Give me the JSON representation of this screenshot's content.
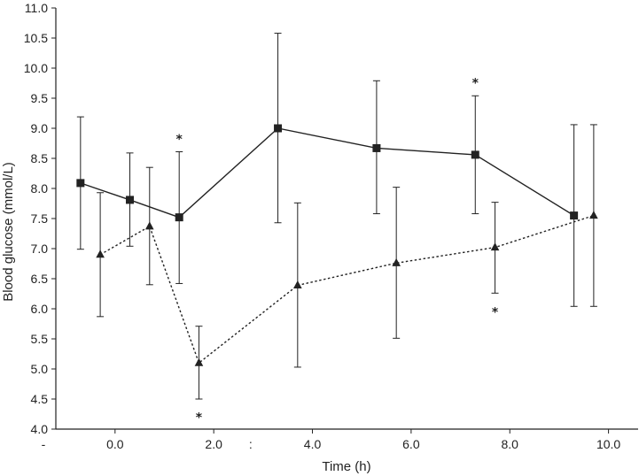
{
  "chart_data": {
    "type": "line",
    "xlabel": "Time (h)",
    "ylabel": "Blood glucose (mmol/L)",
    "xlim": [
      -1.2,
      10.6
    ],
    "ylim": [
      4.0,
      11.0
    ],
    "x_ticks": [
      0.0,
      2.0,
      4.0,
      6.0,
      8.0,
      10.0
    ],
    "x_tick_labels": [
      "0.0",
      "2.0",
      "4.0",
      "6.0",
      "8.0",
      "10.0"
    ],
    "x_extra_labels": [
      {
        "x": -1.2,
        "text": "-"
      },
      {
        "x": 3.0,
        "text": ":"
      }
    ],
    "y_ticks": [
      4.0,
      4.5,
      5.0,
      5.5,
      6.0,
      6.5,
      7.0,
      7.5,
      8.0,
      8.5,
      9.0,
      9.5,
      10.0,
      10.5,
      11.0
    ],
    "y_tick_labels": [
      "4.0",
      "4.5",
      "5.0",
      "5.5",
      "6.0",
      "6.5",
      "7.0",
      "7.5",
      "8.0",
      "8.5",
      "9.0",
      "9.5",
      "10.0",
      "10.5",
      "11.0"
    ],
    "grid": false,
    "series": [
      {
        "marker": "square",
        "line_style": "solid",
        "points": [
          {
            "x": -0.7,
            "y": 8.09,
            "lo": 6.99,
            "hi": 9.19
          },
          {
            "x": 0.3,
            "y": 7.81,
            "lo": 7.04,
            "hi": 8.59
          },
          {
            "x": 1.3,
            "y": 7.52,
            "lo": 6.42,
            "hi": 8.61
          },
          {
            "x": 3.3,
            "y": 9.0,
            "lo": 7.43,
            "hi": 10.58
          },
          {
            "x": 5.3,
            "y": 8.67,
            "lo": 7.58,
            "hi": 9.79
          },
          {
            "x": 7.3,
            "y": 8.56,
            "lo": 7.58,
            "hi": 9.54
          },
          {
            "x": 9.3,
            "y": 7.55,
            "lo": 6.04,
            "hi": 9.06
          }
        ]
      },
      {
        "marker": "triangle",
        "line_style": "dotted",
        "points": [
          {
            "x": -0.3,
            "y": 6.9,
            "lo": 5.87,
            "hi": 7.93
          },
          {
            "x": 0.7,
            "y": 7.37,
            "lo": 6.4,
            "hi": 8.35
          },
          {
            "x": 1.7,
            "y": 5.1,
            "lo": 4.5,
            "hi": 5.71
          },
          {
            "x": 3.7,
            "y": 6.39,
            "lo": 5.03,
            "hi": 7.76
          },
          {
            "x": 5.7,
            "y": 6.76,
            "lo": 5.51,
            "hi": 8.02
          },
          {
            "x": 7.7,
            "y": 7.02,
            "lo": 6.26,
            "hi": 7.77
          },
          {
            "x": 9.7,
            "y": 7.55,
            "lo": 6.04,
            "hi": 9.06
          }
        ]
      }
    ],
    "annotations": [
      {
        "text": "*",
        "x": 1.3,
        "y": 8.82
      },
      {
        "text": "*",
        "x": 1.7,
        "y": 4.2
      },
      {
        "text": "*",
        "x": 7.3,
        "y": 9.76
      },
      {
        "text": "*",
        "x": 7.7,
        "y": 5.95
      }
    ]
  }
}
